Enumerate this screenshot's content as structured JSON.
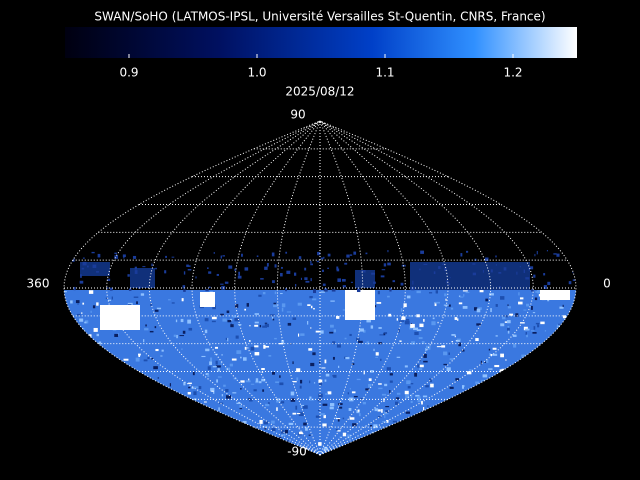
{
  "title": "SWAN/SoHO (LATMOS-IPSL, Université Versailles St-Quentin, CNRS, France)",
  "colorbar": {
    "range": [
      0.85,
      1.25
    ],
    "ticks": [
      0.9,
      {
        "value": 1,
        "label": "1.0"
      },
      1.1,
      1.2
    ]
  },
  "date": "2025/08/12",
  "map": {
    "lat_top": "90",
    "lat_bottom": "-90",
    "lon_left": "360",
    "lon_right": "0"
  }
}
